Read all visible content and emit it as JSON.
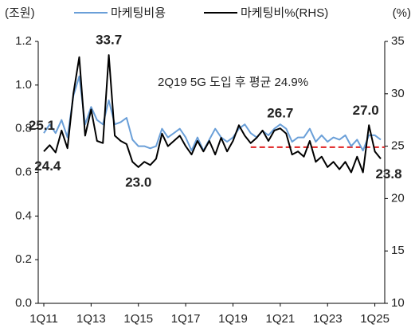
{
  "chart_data": {
    "type": "line",
    "y_unit": "(조원)",
    "y2_unit": "(%)",
    "annotation": "2Q19 5G 도입 후 평균 24.9%",
    "average_line": {
      "value": 24.9,
      "color": "#e02020",
      "axis": "y2"
    },
    "categories": [
      "1Q11",
      null,
      null,
      null,
      null,
      null,
      null,
      null,
      "1Q13",
      null,
      null,
      null,
      null,
      null,
      null,
      null,
      "1Q15",
      null,
      null,
      null,
      null,
      null,
      null,
      null,
      "1Q17",
      null,
      null,
      null,
      null,
      null,
      null,
      null,
      "1Q19",
      null,
      null,
      null,
      null,
      null,
      null,
      null,
      "1Q21",
      null,
      null,
      null,
      null,
      null,
      null,
      null,
      "1Q23",
      null,
      null,
      null,
      null,
      null,
      null,
      null,
      "1Q25",
      null
    ],
    "series": [
      {
        "name": "마케팅비용",
        "color": "#6a9fd8",
        "values": [
          0.78,
          0.82,
          0.78,
          0.84,
          0.76,
          0.95,
          1.04,
          0.82,
          0.9,
          0.84,
          0.82,
          0.93,
          0.82,
          0.83,
          0.85,
          0.75,
          0.72,
          0.72,
          0.71,
          0.72,
          0.8,
          0.76,
          0.78,
          0.8,
          0.76,
          0.7,
          0.76,
          0.7,
          0.75,
          0.8,
          0.76,
          0.74,
          0.76,
          0.8,
          0.82,
          0.78,
          0.76,
          0.79,
          0.77,
          0.8,
          0.82,
          0.8,
          0.74,
          0.76,
          0.76,
          0.8,
          0.74,
          0.77,
          0.74,
          0.76,
          0.75,
          0.77,
          0.72,
          0.75,
          0.7,
          0.77,
          0.77,
          0.75
        ]
      },
      {
        "name": "마케팅비%(RHS)",
        "color": "#000000",
        "axis": "y2",
        "values": [
          24.5,
          25.1,
          24.4,
          26.5,
          24.8,
          30,
          33.5,
          26,
          28.5,
          25.5,
          25.3,
          33.7,
          26,
          25.5,
          25.2,
          23.5,
          23.0,
          23.5,
          23.2,
          23.8,
          26.2,
          25,
          25.5,
          26,
          25,
          24.2,
          25.5,
          24.5,
          25.5,
          24.2,
          25.8,
          24.5,
          25.5,
          27,
          26,
          25.3,
          25.8,
          26.5,
          25.5,
          26.5,
          26.7,
          26.2,
          24.2,
          24.5,
          24,
          25.5,
          23.5,
          24,
          23,
          23.5,
          22.8,
          23.5,
          22.5,
          24,
          22.5,
          27.0,
          24.5,
          23.8
        ],
        "value_labels": [
          null,
          "25.1",
          "24.4",
          null,
          null,
          null,
          null,
          null,
          null,
          null,
          null,
          "33.7",
          null,
          null,
          null,
          null,
          "23.0",
          null,
          null,
          null,
          null,
          null,
          null,
          null,
          null,
          null,
          null,
          null,
          null,
          null,
          null,
          null,
          null,
          null,
          null,
          null,
          null,
          null,
          null,
          null,
          "26.7",
          null,
          null,
          null,
          null,
          null,
          null,
          null,
          null,
          null,
          null,
          null,
          null,
          null,
          null,
          "27.0",
          null,
          "23.8"
        ]
      }
    ],
    "ylim": [
      0,
      1.2
    ],
    "yticks": [
      {
        "value": 0,
        "label": "0.0"
      },
      0.2,
      0.4,
      0.6,
      0.8,
      {
        "value": 1,
        "label": "1.0"
      },
      1.2
    ],
    "y2lim": [
      10,
      35
    ],
    "y2ticks": [
      10,
      15,
      20,
      25,
      30,
      35
    ]
  }
}
